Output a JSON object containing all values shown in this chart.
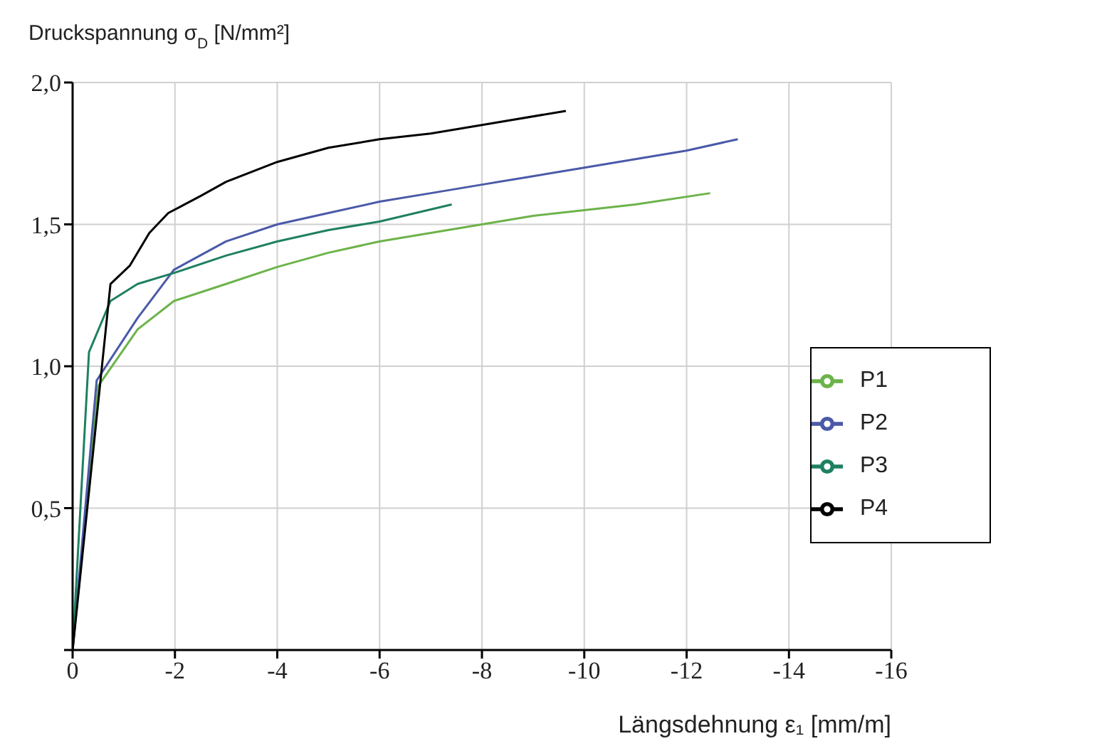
{
  "chart_data": {
    "type": "line",
    "xlabel": "Längsdehnung ε₁ [mm/m]",
    "ylabel": "Druckspannung σ$_{D}$ [N/mm²]",
    "xlim": [
      0,
      -16
    ],
    "xticks": [
      0,
      -2,
      -4,
      -6,
      -8,
      -10,
      -12,
      -14,
      -16
    ],
    "ylim": [
      0,
      2
    ],
    "yticks": [
      {
        "value": 0,
        "label": null
      },
      {
        "value": 0.5,
        "label": "0,5"
      },
      {
        "value": 1,
        "label": "1,0"
      },
      {
        "value": 1.5,
        "label": "1,5"
      },
      {
        "value": 2,
        "label": "2,0"
      }
    ],
    "grid": true,
    "legend": "right",
    "marker": "none",
    "line_style": "solid",
    "series": [
      {
        "name": "P1",
        "color": "#6cb34a",
        "x": [
          0,
          -0.5,
          -1.27,
          -1.98,
          -3,
          -4,
          -5,
          -6,
          -7,
          -8,
          -9,
          -10,
          -11,
          -12.46
        ],
        "values": [
          0,
          0.93,
          1.13,
          1.23,
          1.29,
          1.35,
          1.4,
          1.44,
          1.47,
          1.5,
          1.53,
          1.55,
          1.57,
          1.61
        ]
      },
      {
        "name": "P2",
        "color": "#4a5aa8",
        "x": [
          0,
          -0.47,
          -1.27,
          -1.98,
          -3,
          -4,
          -5,
          -6,
          -7,
          -8,
          -9,
          -10,
          -11,
          -12,
          -13
        ],
        "values": [
          0,
          0.95,
          1.17,
          1.34,
          1.44,
          1.5,
          1.54,
          1.58,
          1.61,
          1.64,
          1.67,
          1.7,
          1.73,
          1.76,
          1.8
        ]
      },
      {
        "name": "P3",
        "color": "#1e8062",
        "x": [
          0,
          -0.32,
          -0.74,
          -1.27,
          -2,
          -3,
          -4,
          -5,
          -6,
          -7.41
        ],
        "values": [
          0,
          1.05,
          1.23,
          1.29,
          1.33,
          1.39,
          1.44,
          1.48,
          1.51,
          1.57
        ]
      },
      {
        "name": "P4",
        "color": "#000000",
        "x": [
          0,
          -0.74,
          -1.12,
          -1.5,
          -1.87,
          -2.5,
          -3,
          -4,
          -5,
          -6,
          -7,
          -8,
          -9.64
        ],
        "values": [
          0,
          1.29,
          1.355,
          1.47,
          1.54,
          1.6,
          1.65,
          1.72,
          1.77,
          1.8,
          1.82,
          1.85,
          1.9
        ]
      }
    ]
  }
}
